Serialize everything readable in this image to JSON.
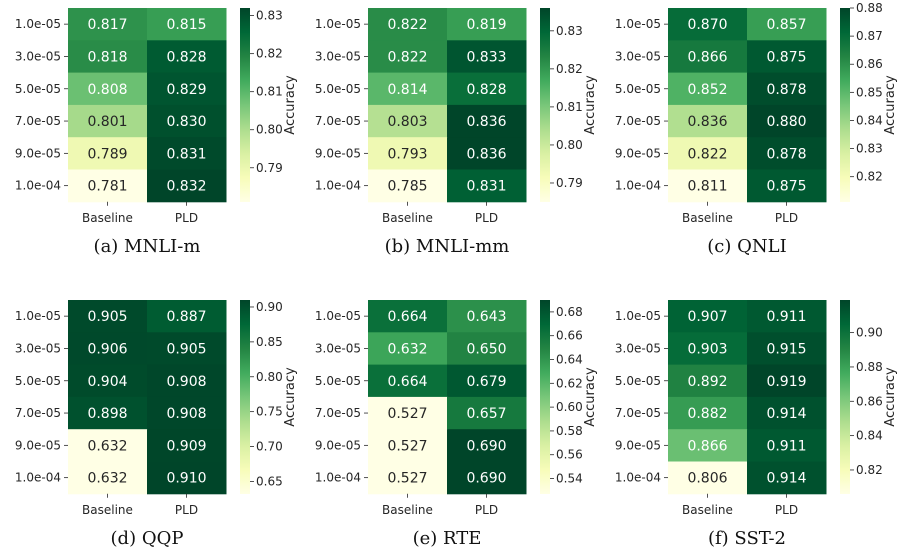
{
  "chart_data": [
    {
      "type": "heatmap",
      "caption": "(a) MNLI-m",
      "rows": [
        "1.0e-05",
        "3.0e-05",
        "5.0e-05",
        "7.0e-05",
        "9.0e-05",
        "1.0e-04"
      ],
      "columns": [
        "Baseline",
        "PLD"
      ],
      "values": [
        [
          0.817,
          0.815
        ],
        [
          0.818,
          0.828
        ],
        [
          0.808,
          0.829
        ],
        [
          0.801,
          0.83
        ],
        [
          0.789,
          0.831
        ],
        [
          0.781,
          0.832
        ]
      ],
      "colorbar_label": "Accuracy",
      "colorbar_ticks": [
        "0.79",
        "0.80",
        "0.81",
        "0.82",
        "0.83"
      ],
      "colorbar_range": [
        0.781,
        0.832
      ]
    },
    {
      "type": "heatmap",
      "caption": "(b) MNLI-mm",
      "rows": [
        "1.0e-05",
        "3.0e-05",
        "5.0e-05",
        "7.0e-05",
        "9.0e-05",
        "1.0e-04"
      ],
      "columns": [
        "Baseline",
        "PLD"
      ],
      "values": [
        [
          0.822,
          0.819
        ],
        [
          0.822,
          0.833
        ],
        [
          0.814,
          0.828
        ],
        [
          0.803,
          0.836
        ],
        [
          0.793,
          0.836
        ],
        [
          0.785,
          0.831
        ]
      ],
      "colorbar_label": "Accuracy",
      "colorbar_ticks": [
        "0.79",
        "0.80",
        "0.81",
        "0.82",
        "0.83"
      ],
      "colorbar_range": [
        0.785,
        0.836
      ]
    },
    {
      "type": "heatmap",
      "caption": "(c) QNLI",
      "rows": [
        "1.0e-05",
        "3.0e-05",
        "5.0e-05",
        "7.0e-05",
        "9.0e-05",
        "1.0e-04"
      ],
      "columns": [
        "Baseline",
        "PLD"
      ],
      "values": [
        [
          0.87,
          0.857
        ],
        [
          0.866,
          0.875
        ],
        [
          0.852,
          0.878
        ],
        [
          0.836,
          0.88
        ],
        [
          0.822,
          0.878
        ],
        [
          0.811,
          0.875
        ]
      ],
      "colorbar_label": "Accuracy",
      "colorbar_ticks": [
        "0.82",
        "0.83",
        "0.84",
        "0.85",
        "0.86",
        "0.87",
        "0.88"
      ],
      "colorbar_range": [
        0.811,
        0.88
      ]
    },
    {
      "type": "heatmap",
      "caption": "(d) QQP",
      "rows": [
        "1.0e-05",
        "3.0e-05",
        "5.0e-05",
        "7.0e-05",
        "9.0e-05",
        "1.0e-04"
      ],
      "columns": [
        "Baseline",
        "PLD"
      ],
      "values": [
        [
          0.905,
          0.887
        ],
        [
          0.906,
          0.905
        ],
        [
          0.904,
          0.908
        ],
        [
          0.898,
          0.908
        ],
        [
          0.632,
          0.909
        ],
        [
          0.632,
          0.91
        ]
      ],
      "colorbar_label": "Accuracy",
      "colorbar_ticks": [
        "0.65",
        "0.70",
        "0.75",
        "0.80",
        "0.85",
        "0.90"
      ],
      "colorbar_range": [
        0.632,
        0.91
      ]
    },
    {
      "type": "heatmap",
      "caption": "(e) RTE",
      "rows": [
        "1.0e-05",
        "3.0e-05",
        "5.0e-05",
        "7.0e-05",
        "9.0e-05",
        "1.0e-04"
      ],
      "columns": [
        "Baseline",
        "PLD"
      ],
      "values": [
        [
          0.664,
          0.643
        ],
        [
          0.632,
          0.65
        ],
        [
          0.664,
          0.679
        ],
        [
          0.527,
          0.657
        ],
        [
          0.527,
          0.69
        ],
        [
          0.527,
          0.69
        ]
      ],
      "colorbar_label": "Accuracy",
      "colorbar_ticks": [
        "0.54",
        "0.56",
        "0.58",
        "0.60",
        "0.62",
        "0.64",
        "0.66",
        "0.68"
      ],
      "colorbar_range": [
        0.527,
        0.69
      ]
    },
    {
      "type": "heatmap",
      "caption": "(f) SST-2",
      "rows": [
        "1.0e-05",
        "3.0e-05",
        "5.0e-05",
        "7.0e-05",
        "9.0e-05",
        "1.0e-04"
      ],
      "columns": [
        "Baseline",
        "PLD"
      ],
      "values": [
        [
          0.907,
          0.911
        ],
        [
          0.903,
          0.915
        ],
        [
          0.892,
          0.919
        ],
        [
          0.882,
          0.914
        ],
        [
          0.866,
          0.911
        ],
        [
          0.806,
          0.914
        ]
      ],
      "colorbar_label": "Accuracy",
      "colorbar_ticks": [
        "0.82",
        "0.84",
        "0.86",
        "0.88",
        "0.90"
      ],
      "colorbar_range": [
        0.806,
        0.919
      ]
    }
  ],
  "colormap": [
    "#ffffe5",
    "#f7fcb9",
    "#d9f0a3",
    "#addd8e",
    "#78c679",
    "#41ab5d",
    "#238443",
    "#006837",
    "#004529"
  ]
}
